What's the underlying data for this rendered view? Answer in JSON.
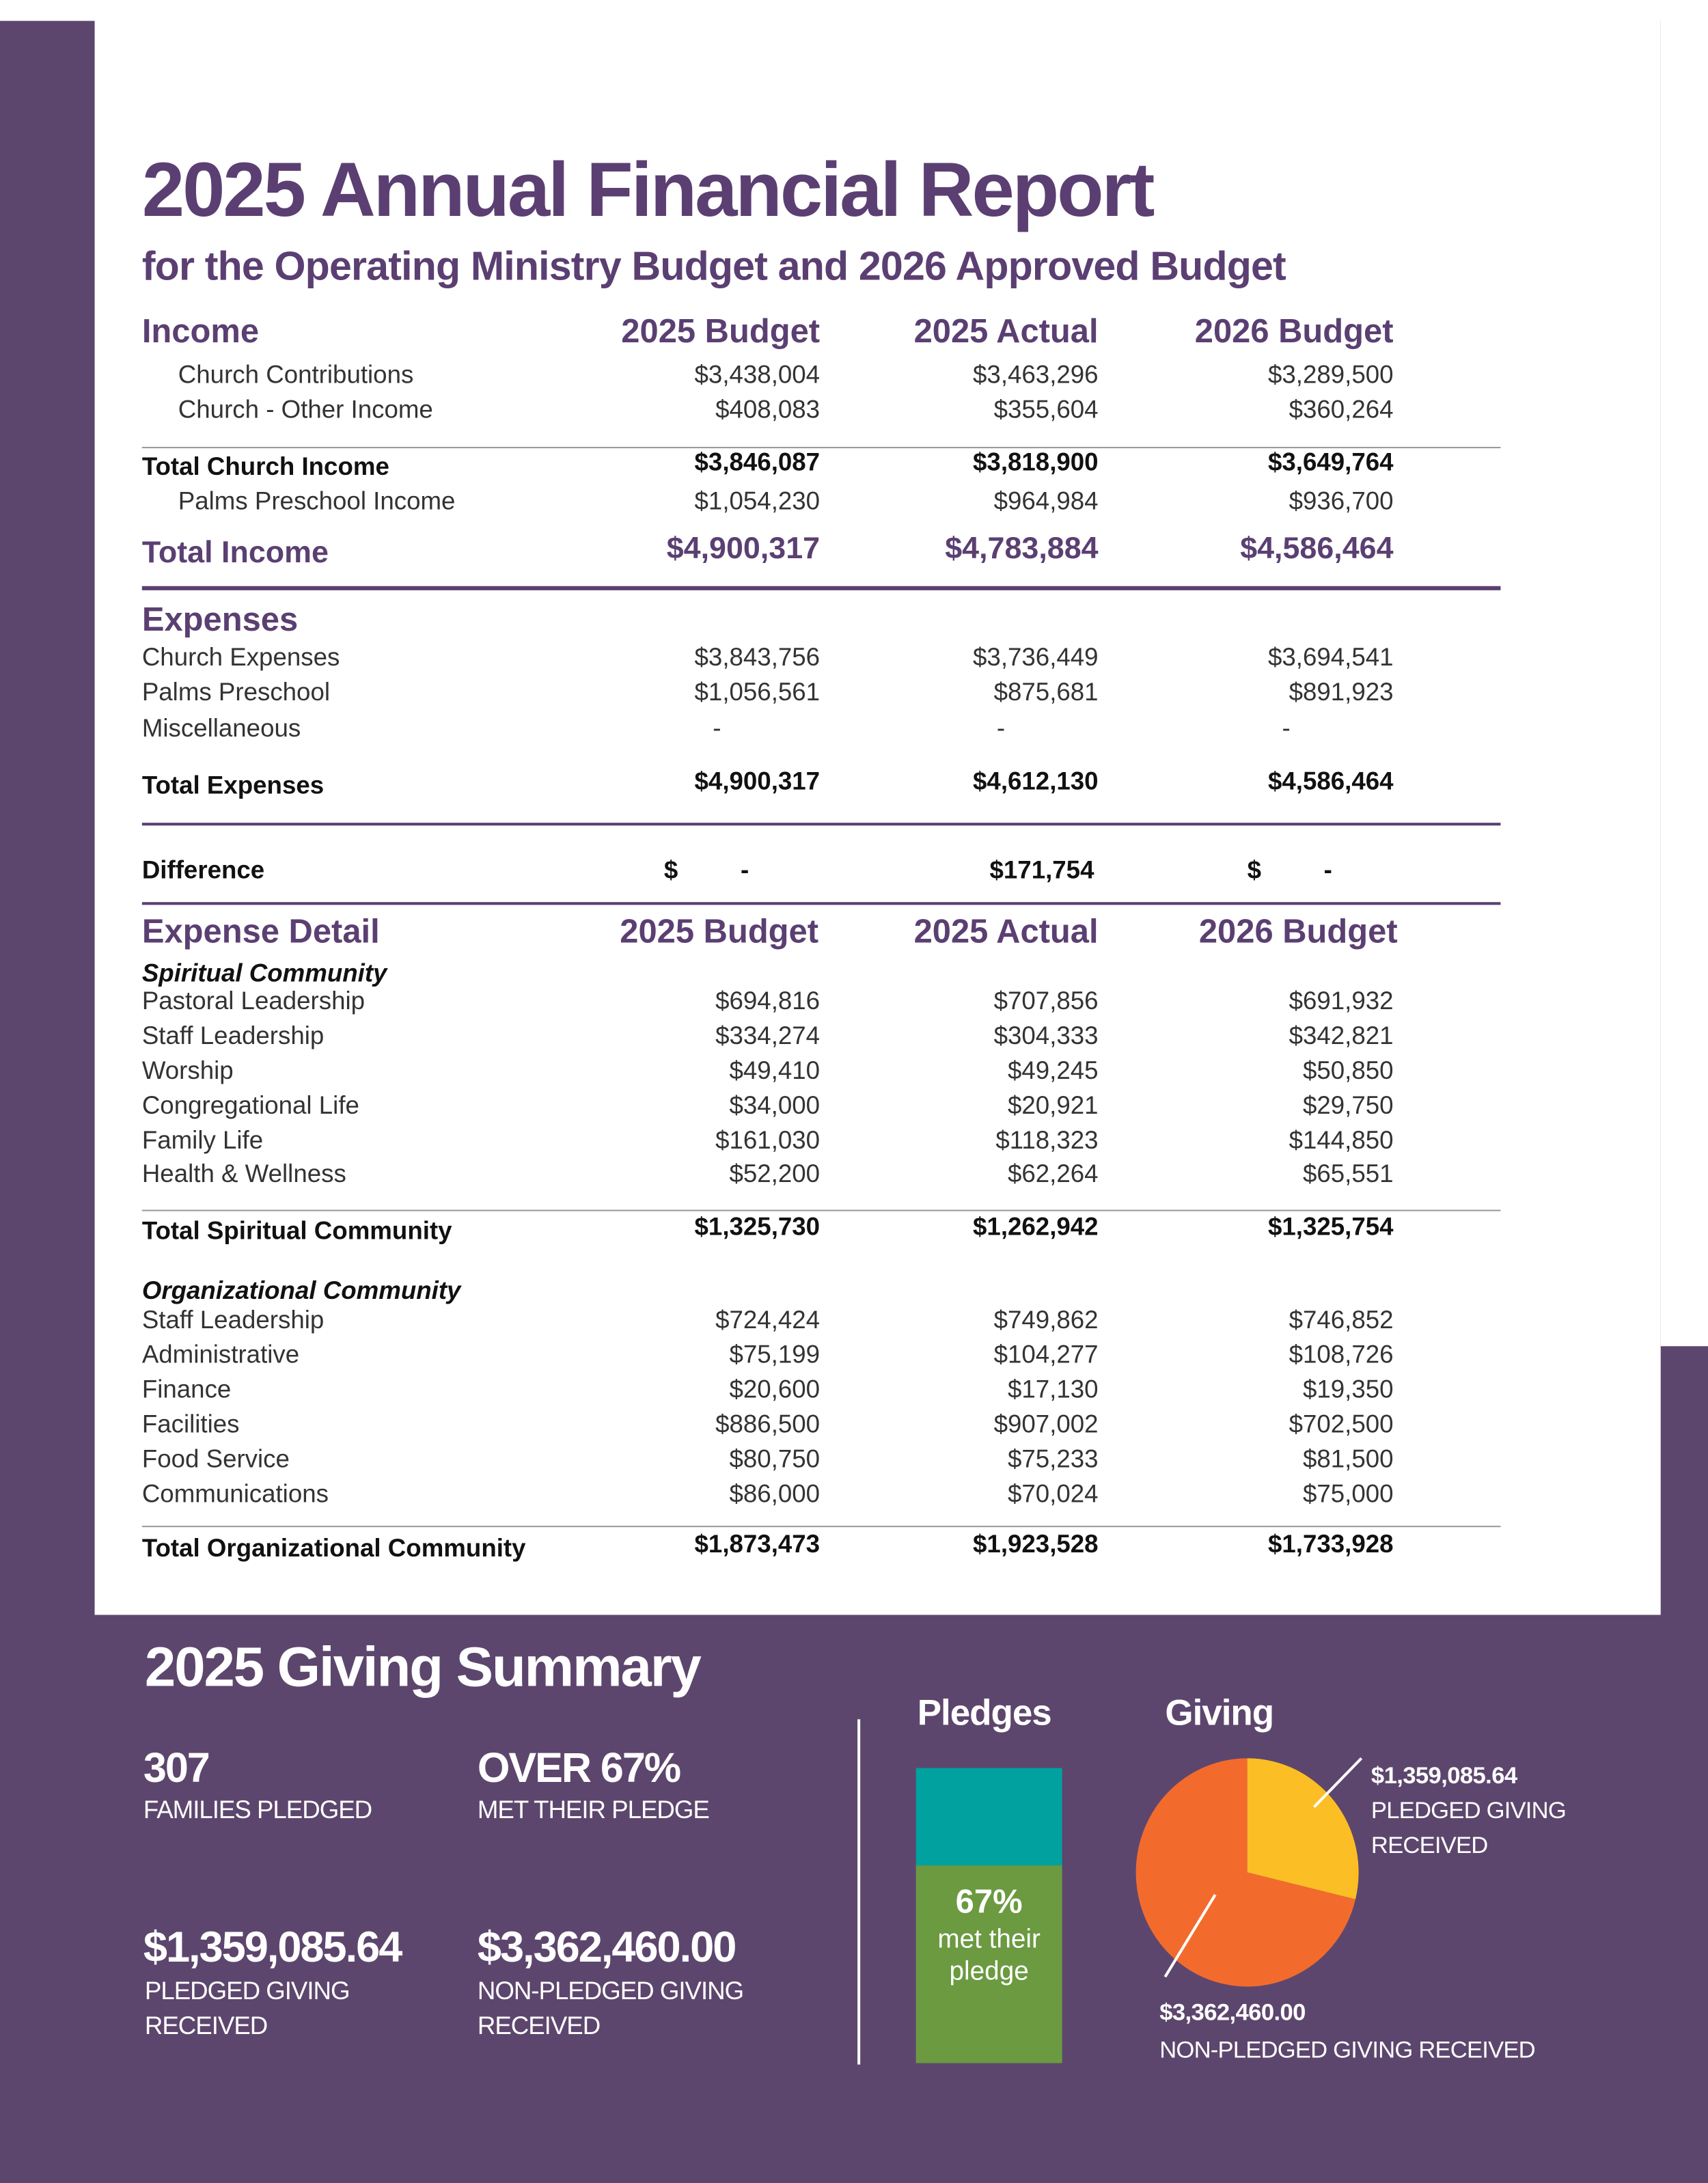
{
  "title": "2025 Annual Financial Report",
  "subtitle": "for the Operating Ministry Budget and 2026 Approved Budget",
  "columns": [
    "2025 Budget",
    "2025 Actual",
    "2026 Budget"
  ],
  "table": {
    "rows": [
      {
        "label": "Income",
        "values": [
          "2025 Budget",
          "2025 Actual",
          "2026 Budget"
        ]
      },
      {
        "label": "Church Contributions",
        "values": [
          "$3,438,004",
          "$3,463,296",
          "$3,289,500"
        ]
      },
      {
        "label": "Church - Other Income",
        "values": [
          "$408,083",
          "$355,604",
          "$360,264"
        ]
      },
      {
        "label": "Total Church Income",
        "values": [
          "$3,846,087",
          "$3,818,900",
          "$3,649,764"
        ]
      },
      {
        "label": "Palms Preschool Income",
        "values": [
          "$1,054,230",
          "$964,984",
          "$936,700"
        ]
      },
      {
        "label": "Total Income",
        "values": [
          "$4,900,317",
          "$4,783,884",
          "$4,586,464"
        ]
      },
      {
        "label": "Expenses",
        "values": []
      },
      {
        "label": "Church Expenses",
        "values": [
          "$3,843,756",
          "$3,736,449",
          "$3,694,541"
        ]
      },
      {
        "label": "Palms Preschool",
        "values": [
          "$1,056,561",
          "$875,681",
          "$891,923"
        ]
      },
      {
        "label": "Miscellaneous",
        "values": [
          "-",
          "-",
          "-"
        ]
      },
      {
        "label": "Total Expenses",
        "values": [
          "$4,900,317",
          "$4,612,130",
          "$4,586,464"
        ]
      },
      {
        "label": "Difference",
        "values": [
          "$ -",
          "$171,754",
          "$ -"
        ]
      },
      {
        "label": "Expense Detail",
        "values": [
          "2025 Budget",
          "2025 Actual",
          "2026 Budget"
        ]
      },
      {
        "label": "Spiritual Community",
        "values": []
      },
      {
        "label": "Pastoral Leadership",
        "values": [
          "$694,816",
          "$707,856",
          "$691,932"
        ]
      },
      {
        "label": "Staff Leadership",
        "values": [
          "$334,274",
          "$304,333",
          "$342,821"
        ]
      },
      {
        "label": "Worship",
        "values": [
          "$49,410",
          "$49,245",
          "$50,850"
        ]
      },
      {
        "label": "Congregational Life",
        "values": [
          "$34,000",
          "$20,921",
          "$29,750"
        ]
      },
      {
        "label": "Family Life",
        "values": [
          "$161,030",
          "$118,323",
          "$144,850"
        ]
      },
      {
        "label": "Health & Wellness",
        "values": [
          "$52,200",
          "$62,264",
          "$65,551"
        ]
      },
      {
        "label": "Total Spiritual Community",
        "values": [
          "$1,325,730",
          "$1,262,942",
          "$1,325,754"
        ]
      },
      {
        "label": "Organizational Community",
        "values": []
      },
      {
        "label": "Staff Leadership",
        "values": [
          "$724,424",
          "$749,862",
          "$746,852"
        ]
      },
      {
        "label": "Administrative",
        "values": [
          "$75,199",
          "$104,277",
          "$108,726"
        ]
      },
      {
        "label": "Finance",
        "values": [
          "$20,600",
          "$17,130",
          "$19,350"
        ]
      },
      {
        "label": "Facilities",
        "values": [
          "$886,500",
          "$907,002",
          "$702,500"
        ]
      },
      {
        "label": "Food Service",
        "values": [
          "$80,750",
          "$75,233",
          "$81,500"
        ]
      },
      {
        "label": "Communications",
        "values": [
          "$86,000",
          "$70,024",
          "$75,000"
        ]
      },
      {
        "label": "Total Organizational Community",
        "values": [
          "$1,873,473",
          "$1,923,528",
          "$1,733,928"
        ]
      }
    ]
  },
  "giving_summary": {
    "title": "2025 Giving Summary",
    "stats": [
      {
        "value": "307",
        "label": "FAMILIES PLEDGED"
      },
      {
        "value": "OVER 67%",
        "label": "MET THEIR PLEDGE"
      },
      {
        "value": "$1,359,085.64",
        "label": "PLEDGED GIVING RECEIVED"
      },
      {
        "value": "$3,362,460.00",
        "label": "NON-PLEDGED GIVING RECEIVED"
      }
    ],
    "pledges": {
      "title": "Pledges",
      "met_fraction": 0.67,
      "percent": "67%",
      "caption_1": "met their",
      "caption_2": "pledge",
      "colors": {
        "met": "#6b9a40",
        "not_met": "#00a19e"
      }
    },
    "giving": {
      "title": "Giving",
      "slices": [
        {
          "amount_text": "$1,359,085.64",
          "value": 1359085.64,
          "label_1": "PLEDGED GIVING",
          "label_2": "RECEIVED",
          "color": "#fbbe24"
        },
        {
          "amount_text": "$3,362,460.00",
          "value": 3362460.0,
          "label_1": "NON-PLEDGED GIVING RECEIVED",
          "color": "#f26b2d"
        }
      ]
    }
  }
}
